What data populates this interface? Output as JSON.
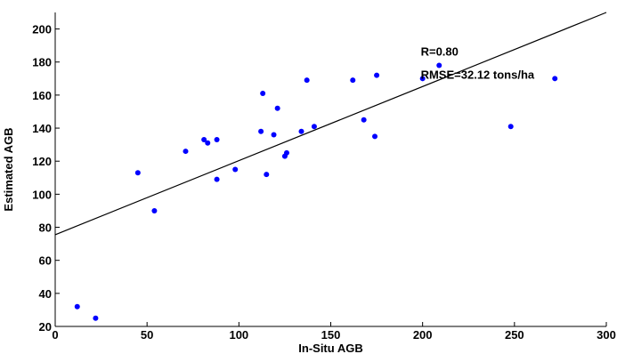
{
  "chart_data": {
    "type": "scatter",
    "xlabel": "In-Situ AGB",
    "ylabel": "Estimated AGB",
    "xlim": [
      0,
      300
    ],
    "ylim": [
      20,
      210
    ],
    "xticks": [
      0,
      50,
      100,
      150,
      200,
      250,
      300
    ],
    "yticks": [
      20,
      40,
      60,
      80,
      100,
      120,
      140,
      160,
      180,
      200
    ],
    "grid": false,
    "point_color": "#0000ff",
    "line_color": "#000000",
    "series": [
      {
        "points": [
          [
            12,
            32
          ],
          [
            22,
            25
          ],
          [
            45,
            113
          ],
          [
            54,
            90
          ],
          [
            71,
            126
          ],
          [
            81,
            133
          ],
          [
            83,
            131
          ],
          [
            88,
            133
          ],
          [
            88,
            109
          ],
          [
            98,
            115
          ],
          [
            112,
            138
          ],
          [
            113,
            161
          ],
          [
            115,
            112
          ],
          [
            119,
            136
          ],
          [
            121,
            152
          ],
          [
            125,
            123
          ],
          [
            126,
            125
          ],
          [
            134,
            138
          ],
          [
            137,
            169
          ],
          [
            141,
            141
          ],
          [
            162,
            169
          ],
          [
            168,
            145
          ],
          [
            174,
            135
          ],
          [
            175,
            172
          ],
          [
            200,
            170
          ],
          [
            209,
            178
          ],
          [
            248,
            141
          ],
          [
            272,
            170
          ]
        ]
      }
    ],
    "fit_line": {
      "x": [
        0,
        300
      ],
      "y": [
        75.5,
        210
      ]
    },
    "annotations": [
      {
        "text": "R=0.80",
        "x": 199,
        "y": 184
      },
      {
        "text": "RMSE=32.12 tons/ha",
        "x": 199,
        "y": 170
      }
    ]
  }
}
